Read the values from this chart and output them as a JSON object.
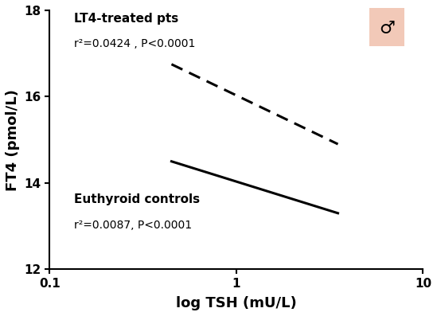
{
  "title": "",
  "xlabel": "log TSH (mU/L)",
  "ylabel": "FT4 (pmol/L)",
  "xlim": [
    0.1,
    10
  ],
  "ylim": [
    12,
    18
  ],
  "yticks": [
    12,
    14,
    16,
    18
  ],
  "xticks": [
    0.1,
    1,
    10
  ],
  "xtick_labels": [
    "0.1",
    "1",
    "10"
  ],
  "dashed_line": {
    "x": [
      0.45,
      3.5
    ],
    "y": [
      16.75,
      14.9
    ],
    "label": "LT4-treated pts",
    "annotation": "r²=0.0424 , P<0.0001"
  },
  "solid_line": {
    "x": [
      0.45,
      3.5
    ],
    "y": [
      14.5,
      13.3
    ],
    "label": "Euthyroid controls",
    "annotation": "r²=0.0087, P<0.0001"
  },
  "line_color": "#000000",
  "line_width": 2.2,
  "background_color": "#ffffff",
  "symbol_bg_color": "#f2c9b8",
  "label_fontsize": 11,
  "annotation_fontsize": 10,
  "axis_label_fontsize": 13,
  "tick_fontsize": 11
}
